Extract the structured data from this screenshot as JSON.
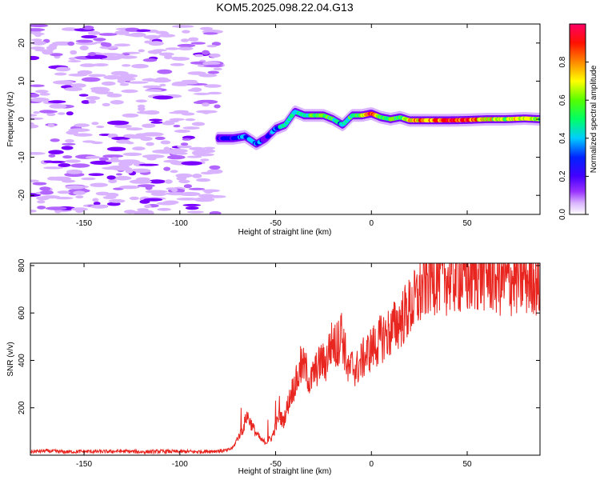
{
  "chart_data": [
    {
      "type": "heatmap",
      "title": "KOM5.2025.098.22.04.G13",
      "xlabel": "Height of straight line (km)",
      "ylabel": "Frequency (Hz)",
      "xlim": [
        -178,
        88
      ],
      "ylim": [
        -25,
        25
      ],
      "xticks": [
        -150,
        -100,
        -50,
        0,
        50
      ],
      "yticks": [
        -20,
        -10,
        0,
        10,
        20
      ],
      "grid": false,
      "colormap": [
        "#ffffff",
        "#d9b3ff",
        "#b366ff",
        "#7a00ff",
        "#0000ff",
        "#00d0ff",
        "#00ff80",
        "#7cff00",
        "#ffff00",
        "#ff8000",
        "#ff0000",
        "#ff0066"
      ],
      "colorbar": {
        "label": "Normalized spectral amplitude",
        "range": [
          0,
          1
        ],
        "ticks": [
          0.0,
          0.2,
          0.4,
          0.6,
          0.8
        ]
      },
      "ridge": {
        "x": [
          -80,
          -72,
          -66,
          -60,
          -55,
          -50,
          -45,
          -40,
          -35,
          -30,
          -25,
          -20,
          -15,
          -10,
          -5,
          0,
          5,
          10,
          15,
          20,
          30,
          40,
          50,
          60,
          70,
          80,
          88
        ],
        "freq": [
          -5,
          -5,
          -4.5,
          -6.5,
          -5,
          -2.5,
          -1.5,
          2,
          1,
          1,
          1,
          0,
          -1.5,
          1,
          1,
          1.5,
          0.5,
          0,
          0.5,
          -0.3,
          -0.3,
          -0.3,
          -0.2,
          0,
          0,
          0.2,
          0
        ],
        "amplitude": [
          0.3,
          0.35,
          0.4,
          0.45,
          0.3,
          0.4,
          0.55,
          0.5,
          0.5,
          0.55,
          0.6,
          0.55,
          0.45,
          0.55,
          0.6,
          0.95,
          0.6,
          0.55,
          0.6,
          0.75,
          0.8,
          0.85,
          0.9,
          0.7,
          0.65,
          0.7,
          0.6
        ]
      },
      "noise_region": {
        "x_range": [
          -178,
          -80
        ],
        "freq_range": [
          -25,
          25
        ],
        "amplitude_range": [
          0.05,
          0.35
        ]
      }
    },
    {
      "type": "line",
      "xlabel": "Height of straight line (km)",
      "ylabel": "SNR (v/v)",
      "xlim": [
        -178,
        88
      ],
      "ylim": [
        0,
        810
      ],
      "xticks": [
        -150,
        -100,
        -50,
        0,
        50
      ],
      "yticks": [
        200,
        400,
        600,
        800
      ],
      "grid": false,
      "color": "#e8251f",
      "series": [
        {
          "x": [
            -178,
            -170,
            -160,
            -150,
            -140,
            -130,
            -120,
            -110,
            -100,
            -90,
            -80,
            -75,
            -72,
            -70,
            -67,
            -65,
            -62,
            -60,
            -57,
            -55,
            -52,
            -50,
            -48,
            -46,
            -44,
            -42,
            -40,
            -38,
            -36,
            -34,
            -32,
            -30,
            -28,
            -26,
            -24,
            -22,
            -20,
            -18,
            -16,
            -14,
            -12,
            -10,
            -8,
            -5,
            -2,
            0,
            3,
            6,
            10,
            14,
            18,
            22,
            26,
            30,
            35,
            40,
            45,
            50,
            55,
            60,
            65,
            70,
            75,
            80,
            85,
            88
          ],
          "y": [
            15,
            18,
            14,
            16,
            15,
            17,
            14,
            16,
            15,
            15,
            18,
            20,
            35,
            70,
            110,
            170,
            120,
            90,
            60,
            55,
            75,
            120,
            170,
            140,
            200,
            260,
            300,
            330,
            380,
            360,
            300,
            350,
            370,
            400,
            380,
            450,
            480,
            440,
            530,
            450,
            350,
            380,
            360,
            400,
            430,
            450,
            470,
            500,
            520,
            560,
            600,
            640,
            690,
            750,
            760,
            750,
            760,
            740,
            770,
            770,
            750,
            730,
            750,
            740,
            760,
            700
          ],
          "spikes": [
            [
              -68,
              200
            ],
            [
              -54,
              150
            ],
            [
              -50,
              230
            ],
            [
              -48,
              250
            ],
            [
              -37,
              460
            ],
            [
              -26,
              420
            ],
            [
              -18,
              560
            ],
            [
              -16,
              590
            ],
            [
              30,
              810
            ],
            [
              60,
              810
            ],
            [
              80,
              790
            ]
          ]
        }
      ]
    }
  ]
}
